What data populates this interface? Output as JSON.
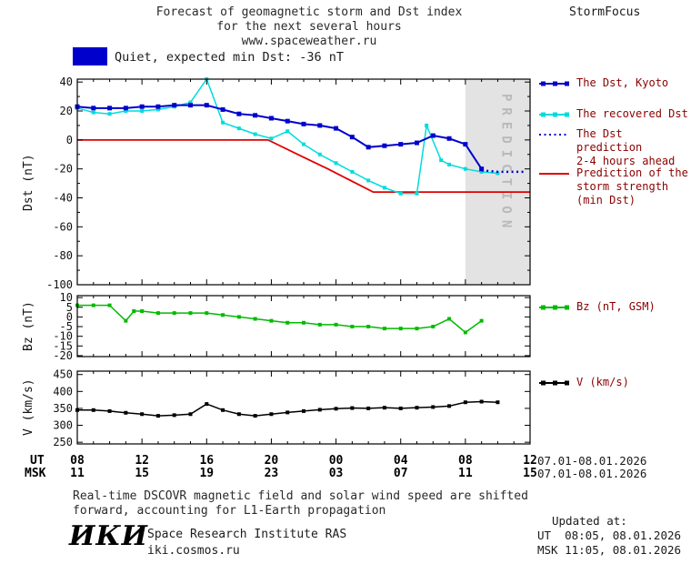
{
  "header": {
    "title_lines": [
      "Forecast of geomagnetic storm and Dst index",
      "for the next several hours",
      "www.spaceweather.ru"
    ],
    "brand": "StormFocus"
  },
  "status_banner": {
    "label": "Quiet, expected min Dst: -36 nT",
    "swatch_color": "#0000cd"
  },
  "prediction_band_label": "PREDICTION",
  "legend": {
    "entries": [
      {
        "label": "The Dst, Kyoto",
        "color": "#0000cd",
        "style": "solid-squares"
      },
      {
        "label": "The recovered Dst",
        "color": "#00dcdc",
        "style": "solid-squares"
      },
      {
        "label": "The Dst prediction\n2-4 hours ahead",
        "color": "#0000cd",
        "style": "dotted"
      },
      {
        "label": "Prediction of the\nstorm strength\n(min Dst)",
        "color": "#e00000",
        "style": "solid"
      },
      {
        "label": "Bz (nT, GSM)",
        "color": "#00bb00",
        "style": "solid-squares"
      },
      {
        "label": "V (km/s)",
        "color": "#000000",
        "style": "solid-squares"
      }
    ]
  },
  "chart_data": [
    {
      "id": "dst",
      "type": "line",
      "ylabel": "Dst (nT)",
      "ylim": [
        -100,
        42
      ],
      "yticks": [
        40,
        20,
        0,
        -20,
        -40,
        -60,
        -80,
        -100
      ],
      "yticks_minor": [
        30,
        10,
        -10,
        -30,
        -50,
        -70,
        -90
      ],
      "xlim": [
        8,
        36
      ],
      "xticks_major": [
        8,
        12,
        16,
        20,
        24,
        28,
        32,
        36
      ],
      "prediction_band_x": [
        32,
        36
      ],
      "series": [
        {
          "name": "Prediction of the storm strength (min Dst)",
          "color": "#e00000",
          "marker": "none",
          "width": 1.8,
          "x": [
            8,
            19.8,
            22,
            23.5,
            26.3,
            36
          ],
          "values": [
            0,
            0,
            -12,
            -20,
            -36,
            -36
          ]
        },
        {
          "name": "The recovered Dst",
          "color": "#00dcdc",
          "marker": "square",
          "ms": 4,
          "width": 1.5,
          "x": [
            8,
            9,
            10,
            11,
            12,
            13,
            14,
            15,
            16,
            17,
            18,
            19,
            20,
            21,
            22,
            23,
            24,
            25,
            26,
            27,
            28,
            29,
            29.6,
            30.5,
            31,
            32,
            33,
            34
          ],
          "values": [
            22,
            19,
            18,
            20,
            20,
            21,
            23,
            26,
            42,
            12,
            8,
            4,
            1,
            6,
            -3,
            -10,
            -16,
            -22,
            -28,
            -33,
            -37,
            -37,
            10,
            -14,
            -17,
            -20,
            -22,
            -23
          ]
        },
        {
          "name": "The Dst, Kyoto",
          "color": "#0000cd",
          "marker": "square",
          "ms": 5,
          "width": 2,
          "x": [
            8,
            9,
            10,
            11,
            12,
            13,
            14,
            15,
            16,
            17,
            18,
            19,
            20,
            21,
            22,
            23,
            24,
            25,
            26,
            27,
            28,
            29,
            30,
            31,
            32,
            33
          ],
          "values": [
            23,
            22,
            22,
            22,
            23,
            23,
            24,
            24,
            24,
            21,
            18,
            17,
            15,
            13,
            11,
            10,
            8,
            2,
            -5,
            -4,
            -3,
            -2,
            3,
            1,
            -3,
            -20
          ]
        },
        {
          "name": "The Dst prediction 2-4 hours ahead",
          "color": "#0000cd",
          "marker": "none",
          "style": "dotted",
          "width": 2.5,
          "x": [
            33,
            34,
            35,
            35.6
          ],
          "values": [
            -21,
            -22,
            -22,
            -22
          ]
        }
      ]
    },
    {
      "id": "bz",
      "type": "line",
      "ylabel": "Bz (nT)",
      "ylim": [
        -20.5,
        11
      ],
      "yticks": [
        10,
        5,
        0,
        -5,
        -10,
        -15,
        -20
      ],
      "xlim": [
        8,
        36
      ],
      "xticks_major": [
        8,
        12,
        16,
        20,
        24,
        28,
        32,
        36
      ],
      "series": [
        {
          "name": "Bz (nT, GSM)",
          "color": "#00bb00",
          "marker": "square",
          "ms": 4,
          "width": 1.5,
          "x": [
            8,
            9,
            10,
            11,
            11.5,
            12,
            13,
            14,
            15,
            16,
            17,
            18,
            19,
            20,
            21,
            22,
            23,
            24,
            25,
            26,
            27,
            28,
            29,
            30,
            31,
            32,
            33
          ],
          "values": [
            6,
            6,
            6,
            -2,
            3,
            3,
            2,
            2,
            2,
            2,
            1,
            0,
            -1,
            -2,
            -3,
            -3,
            -4,
            -4,
            -5,
            -5,
            -6,
            -6,
            -6,
            -5,
            -1,
            -8,
            -2
          ]
        }
      ]
    },
    {
      "id": "v",
      "type": "line",
      "ylabel": "V (km/s)",
      "ylim": [
        245,
        460
      ],
      "yticks": [
        450,
        400,
        350,
        300,
        250
      ],
      "xlim": [
        8,
        36
      ],
      "xticks_major": [
        8,
        12,
        16,
        20,
        24,
        28,
        32,
        36
      ],
      "series": [
        {
          "name": "V (km/s)",
          "color": "#000000",
          "marker": "square",
          "ms": 4,
          "width": 1.5,
          "x": [
            8,
            9,
            10,
            11,
            12,
            13,
            14,
            15,
            16,
            17,
            18,
            19,
            20,
            21,
            22,
            23,
            24,
            25,
            26,
            27,
            28,
            29,
            30,
            31,
            32,
            33,
            34
          ],
          "values": [
            345,
            345,
            342,
            337,
            333,
            328,
            330,
            333,
            363,
            345,
            333,
            328,
            333,
            338,
            342,
            346,
            349,
            351,
            350,
            352,
            350,
            352,
            354,
            357,
            368,
            370,
            368
          ]
        }
      ]
    }
  ],
  "xaxis": {
    "ut_label": "UT",
    "msk_label": "MSK",
    "tick_hours": [
      8,
      12,
      16,
      20,
      24,
      28,
      32,
      36
    ],
    "hours_ut": [
      "08",
      "12",
      "16",
      "20",
      "00",
      "04",
      "08",
      "12"
    ],
    "hours_msk": [
      "11",
      "15",
      "19",
      "23",
      "03",
      "07",
      "11",
      "15"
    ],
    "date_ut": "07.01-08.01.2026",
    "date_msk": "07.01-08.01.2026"
  },
  "footnote": {
    "line1": "Real-time DSCOVR magnetic field and solar wind speed are shifted",
    "line2": "forward, accounting for L1-Earth propagation"
  },
  "footer": {
    "logo": "ИКИ",
    "institute": "Space Research Institute RAS",
    "site": "iki.cosmos.ru",
    "updated_label": "Updated at:",
    "updated_ut": "UT  08:05, 08.01.2026",
    "updated_msk": "MSK 11:05, 08.01.2026"
  }
}
